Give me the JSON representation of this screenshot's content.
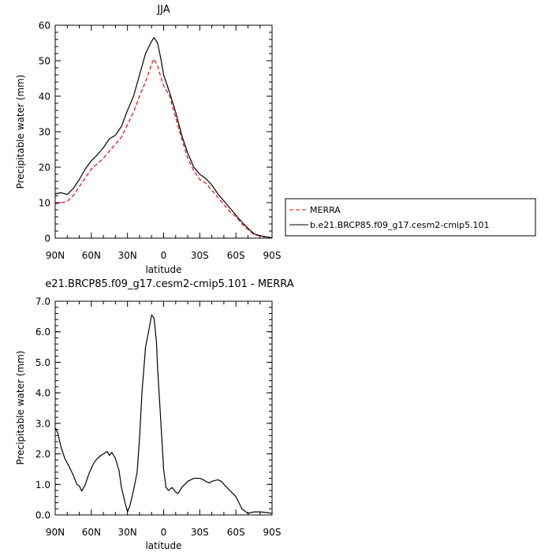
{
  "chart_data": [
    {
      "type": "line",
      "title": "JJA",
      "xlabel": "latitude",
      "ylabel": "Precipitable water (mm)",
      "x_tick_labels": [
        "90N",
        "60N",
        "30N",
        "0",
        "30S",
        "60S",
        "90S"
      ],
      "x_tick_values": [
        90,
        60,
        30,
        0,
        -30,
        -60,
        -90
      ],
      "xlim": [
        90,
        -90
      ],
      "y_tick_labels": [
        "0",
        "10",
        "20",
        "30",
        "40",
        "50",
        "60"
      ],
      "y_tick_values": [
        0,
        10,
        20,
        30,
        40,
        50,
        60
      ],
      "ylim": [
        0,
        60
      ],
      "legend_position": "right",
      "series": [
        {
          "name": "MERRA",
          "color": "#ff0000",
          "dash": "dashed",
          "x": [
            90,
            85,
            80,
            75,
            70,
            65,
            60,
            55,
            50,
            45,
            40,
            35,
            30,
            25,
            20,
            15,
            10,
            8,
            5,
            2,
            0,
            -5,
            -10,
            -15,
            -20,
            -25,
            -30,
            -35,
            -40,
            -45,
            -50,
            -55,
            -60,
            -65,
            -70,
            -75,
            -80,
            -85,
            -90
          ],
          "y": [
            9.6,
            10.0,
            10.3,
            12.0,
            14.5,
            17.0,
            19.5,
            21.0,
            22.5,
            24.5,
            26.5,
            28.5,
            32.0,
            35.5,
            40.0,
            44.0,
            49.0,
            50.5,
            48.5,
            45.0,
            43.0,
            40.0,
            34.0,
            28.0,
            22.5,
            19.0,
            16.5,
            15.5,
            13.5,
            11.5,
            9.5,
            7.5,
            6.0,
            4.0,
            2.5,
            1.0,
            0.6,
            0.3,
            0.1
          ]
        },
        {
          "name": "b.e21.BRCP85.f09_g17.cesm2-cmip5.101",
          "color": "#000000",
          "dash": "solid",
          "x": [
            90,
            85,
            80,
            75,
            70,
            65,
            60,
            55,
            50,
            45,
            40,
            35,
            30,
            25,
            20,
            15,
            10,
            8,
            5,
            2,
            0,
            -5,
            -10,
            -15,
            -20,
            -25,
            -30,
            -35,
            -40,
            -45,
            -50,
            -55,
            -60,
            -65,
            -70,
            -75,
            -80,
            -85,
            -90
          ],
          "y": [
            12.5,
            12.8,
            12.3,
            14.0,
            16.5,
            19.5,
            21.8,
            23.5,
            25.5,
            28.0,
            29.0,
            31.5,
            36.0,
            40.0,
            46.0,
            52.0,
            55.5,
            56.5,
            55.0,
            50.0,
            46.0,
            41.0,
            35.5,
            29.0,
            24.0,
            20.0,
            18.0,
            16.8,
            15.0,
            12.5,
            10.5,
            8.5,
            6.5,
            4.5,
            2.8,
            1.2,
            0.7,
            0.4,
            0.1
          ]
        }
      ]
    },
    {
      "type": "line",
      "title": "e21.BRCP85.f09_g17.cesm2-cmip5.101 - MERRA",
      "xlabel": "latitude",
      "ylabel": "Precipitable water (mm)",
      "x_tick_labels": [
        "90N",
        "60N",
        "30N",
        "0",
        "30S",
        "60S",
        "90S"
      ],
      "x_tick_values": [
        90,
        60,
        30,
        0,
        -30,
        -60,
        -90
      ],
      "xlim": [
        90,
        -90
      ],
      "y_tick_labels": [
        "0.0",
        "1.0",
        "2.0",
        "3.0",
        "4.0",
        "5.0",
        "6.0",
        "7.0"
      ],
      "y_tick_values": [
        0,
        1,
        2,
        3,
        4,
        5,
        6,
        7
      ],
      "ylim": [
        0,
        7
      ],
      "series": [
        {
          "color": "#000000",
          "dash": "solid",
          "x": [
            90,
            88,
            85,
            82,
            78,
            75,
            72,
            70,
            68,
            65,
            62,
            58,
            55,
            52,
            50,
            47,
            45,
            43,
            40,
            37,
            35,
            32,
            30,
            28,
            25,
            22,
            20,
            18,
            15,
            12,
            10,
            8,
            6,
            5,
            3,
            0,
            -2,
            -4,
            -7,
            -10,
            -12,
            -15,
            -20,
            -25,
            -30,
            -33,
            -35,
            -38,
            -40,
            -45,
            -48,
            -50,
            -55,
            -60,
            -65,
            -70,
            -75,
            -80,
            -85,
            -90
          ],
          "y": [
            2.85,
            2.7,
            2.2,
            1.85,
            1.55,
            1.3,
            1.0,
            0.95,
            0.78,
            1.0,
            1.35,
            1.7,
            1.85,
            1.95,
            2.0,
            2.08,
            1.95,
            2.05,
            1.85,
            1.45,
            0.9,
            0.4,
            0.1,
            0.3,
            0.8,
            1.4,
            2.5,
            4.0,
            5.5,
            6.1,
            6.55,
            6.45,
            5.7,
            4.8,
            3.5,
            1.5,
            0.9,
            0.8,
            0.9,
            0.75,
            0.7,
            0.9,
            1.1,
            1.2,
            1.2,
            1.15,
            1.1,
            1.05,
            1.1,
            1.15,
            1.1,
            1.0,
            0.8,
            0.6,
            0.2,
            0.05,
            0.1,
            0.1,
            0.08,
            0.05
          ]
        }
      ]
    }
  ]
}
